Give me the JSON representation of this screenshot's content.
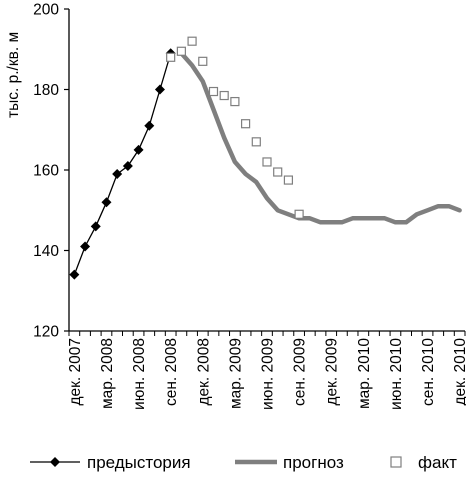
{
  "chart_data": {
    "type": "line",
    "title": "",
    "ylabel": "тыс. р./кв. м",
    "xlabel": "",
    "ylim": [
      120,
      200
    ],
    "yticks": [
      120,
      140,
      160,
      180,
      200
    ],
    "grid": false,
    "legend_position": "bottom",
    "x_tick_labels": [
      "дек. 2007",
      "мар. 2008",
      "июн. 2008",
      "сен. 2008",
      "дек. 2008",
      "мар. 2009",
      "июн. 2009",
      "сен. 2009",
      "дек. 2009",
      "мар. 2010",
      "июн. 2010",
      "сен. 2010",
      "дек. 2010"
    ],
    "series": [
      {
        "name": "предыстория",
        "style": "line-diamond",
        "color": "#000000",
        "x": [
          "2007-12",
          "2008-01",
          "2008-02",
          "2008-03",
          "2008-04",
          "2008-05",
          "2008-06",
          "2008-07",
          "2008-08",
          "2008-09"
        ],
        "y": [
          134,
          141,
          146,
          152,
          159,
          161,
          165,
          171,
          180,
          189
        ]
      },
      {
        "name": "прогноз",
        "style": "thick-line",
        "color": "#7f7f7f",
        "x": [
          "2008-10",
          "2008-11",
          "2008-12",
          "2009-01",
          "2009-02",
          "2009-03",
          "2009-04",
          "2009-05",
          "2009-06",
          "2009-07",
          "2009-08",
          "2009-09",
          "2009-10",
          "2009-11",
          "2009-12",
          "2010-01",
          "2010-02",
          "2010-03",
          "2010-04",
          "2010-05",
          "2010-06",
          "2010-07",
          "2010-08",
          "2010-09",
          "2010-10",
          "2010-11",
          "2010-12"
        ],
        "y": [
          189,
          186,
          182,
          175,
          168,
          162,
          159,
          157,
          153,
          150,
          149,
          148,
          148,
          147,
          147,
          147,
          148,
          148,
          148,
          148,
          147,
          147,
          149,
          150,
          151,
          151,
          150
        ]
      },
      {
        "name": "факт",
        "style": "open-square",
        "color": "#7f7f7f",
        "x": [
          "2008-09",
          "2008-10",
          "2008-11",
          "2008-12",
          "2009-01",
          "2009-02",
          "2009-03",
          "2009-04",
          "2009-05",
          "2009-06",
          "2009-07",
          "2009-08",
          "2009-09"
        ],
        "y": [
          188,
          189.5,
          192,
          187,
          179.5,
          178.5,
          177,
          171.5,
          167,
          162,
          159.5,
          157.5,
          149
        ]
      }
    ]
  }
}
